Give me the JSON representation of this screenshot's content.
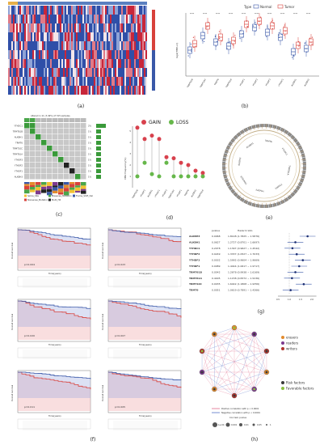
{
  "labels": {
    "a": "(a)",
    "b": "(b)",
    "c": "(c)",
    "d": "(d)",
    "e": "(e)",
    "f": "(f)",
    "g": "(g)",
    "h": "(h)"
  },
  "panel_b": {
    "legend_title": "Type",
    "legend_items": [
      "Normal",
      "Tumor"
    ],
    "ylabel": "log2(TPM+1)",
    "genes": [
      "TRMT61B",
      "TRMT10C",
      "TRMT6",
      "TRMT61A",
      "YTHDF1",
      "YTHDF2",
      "YTHDF3",
      "YTHDC1",
      "ALKBH1",
      "ALKBH3"
    ],
    "sig": "****",
    "colors": {
      "normal": "#3a58a8",
      "tumor": "#d8413b"
    }
  },
  "panel_c": {
    "title": "Altered in 11 (3.49%) of 315 samples.",
    "genes": [
      "YTHDC1",
      "TRMT61B",
      "ALKBH1",
      "TRMT6",
      "TRMT10C",
      "TRMT61A",
      "YTHDF3",
      "YTHDF2",
      "YTHDF1",
      "ALKBH3"
    ],
    "percents": [
      "2%",
      "1%",
      "1%",
      "1%",
      "1%",
      "1%",
      "1%",
      "1%",
      "1%",
      "1%"
    ],
    "legend": [
      "Splice_Site",
      "Missense_Mutation",
      "Frame_Shift_Del",
      "Nonsense_Mutation",
      "Multi_Hit"
    ]
  },
  "panel_d": {
    "legend": [
      "GAIN",
      "LOSS"
    ],
    "ylabel": "CNV frequency(%)",
    "colors": {
      "gain": "#d8414d",
      "loss": "#66b74a"
    }
  },
  "panel_f": {
    "ylabel": "Overall survival",
    "xlabel": "Time(years)",
    "pvalues": [
      "p=0.004",
      "p=0.023",
      "p=0.020",
      "p=0.007",
      "p=0.011",
      "p=0.005"
    ]
  },
  "panel_g": {
    "col_pvalue": "pvalue",
    "col_hr": "Hazard ratio",
    "rows": [
      {
        "gene": "ALKBH3",
        "p": "0.0068",
        "hr": "1.8148 (1.7825 ~ 1.5876)"
      },
      {
        "gene": "ALKBH1",
        "p": "0.0627",
        "hr": "1.2727 (0.8701 ~ 1.6697)"
      },
      {
        "gene": "YTHDC1",
        "p": "0.2078",
        "hr": "1.1397 (0.9627 ~ 1.4542)"
      },
      {
        "gene": "YTHDF2",
        "p": "0.0249",
        "hr": "1.3337 (1.0527 ~ 1.7033)"
      },
      {
        "gene": "YTHDF3",
        "p": "0.0032",
        "hr": "1.5992 (0.9604 ~ 1.9669)"
      },
      {
        "gene": "YTHDF1",
        "p": "0.0089",
        "hr": "1.4444 (1.0617 ~ 1.9717)"
      },
      {
        "gene": "TRMT61B",
        "p": "0.0542",
        "hr": "1.2678 (0.9938 ~ 1.6169)"
      },
      {
        "gene": "TRMT61A",
        "p": "0.4405",
        "hr": "1.1158 (0.8372 ~ 1.5236)"
      },
      {
        "gene": "TRMT10C",
        "p": "0.0035",
        "hr": "1.6442 (1.1808 ~ 1.9356)"
      },
      {
        "gene": "TRMT6",
        "p": "0.0051",
        "hr": "1.0619 (0.7891 ~ 1.4266)"
      }
    ],
    "hr_values": [
      1.81,
      1.27,
      1.14,
      1.33,
      1.6,
      1.44,
      1.27,
      1.12,
      1.64,
      1.06
    ],
    "xticks": [
      "0.5",
      "1.0",
      "1.5",
      "2.0"
    ]
  },
  "panel_h": {
    "legend_types": [
      "erasers",
      "readers",
      "writers"
    ],
    "legend_factors": [
      "Risk factors",
      "Favorable factors"
    ],
    "legend_lines": [
      "Positive correlation with p < 0.0001",
      "Negative correlation with p < 0.0001"
    ],
    "cox_title": "Cox test, pvalue",
    "cox_values": [
      "1e-04",
      "0.001",
      "0.01",
      "0.05",
      "1"
    ]
  }
}
